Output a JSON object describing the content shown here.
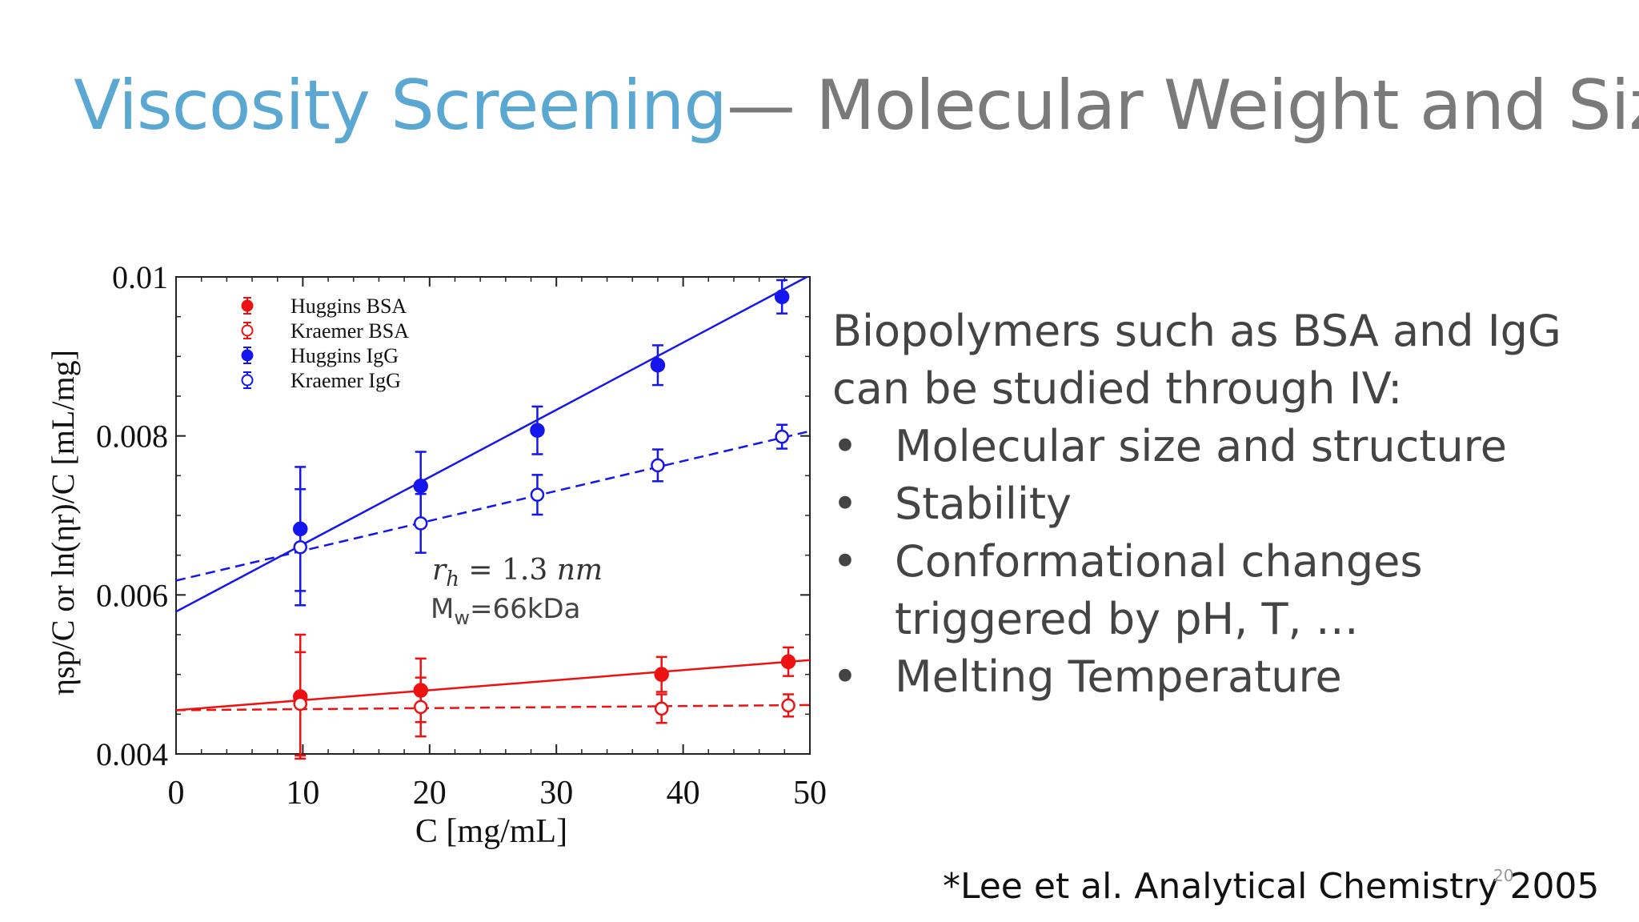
{
  "slide": {
    "title_main": "Viscosity Screening",
    "title_sub": "— Molecular Weight and Size",
    "bullets_intro": "Biopolymers such as BSA and IgG can be studied through IV:",
    "bullets": [
      "Molecular size and structure",
      "Stability",
      "Conformational changes triggered by pH, T, …",
      "Melting Temperature"
    ],
    "bullet_symbol": "•",
    "citation": "*Lee et al. Analytical Chemistry 2005",
    "page_number": "20"
  },
  "chart_data": {
    "type": "scatter",
    "xlabel": "C [mg/mL]",
    "ylabel": "ηsp/C or ln(ηr)/C  [mL/mg]",
    "xlim": [
      0,
      50
    ],
    "ylim": [
      0.004,
      0.01
    ],
    "xticks": [
      "0",
      "10",
      "20",
      "30",
      "40",
      "50"
    ],
    "yticks": [
      "0.004",
      "0.006",
      "0.008",
      "0.01"
    ],
    "legend_position": "top-left",
    "annotations": {
      "rh_symbol": "r",
      "rh_subscript": "h",
      "rh_value": " = 1.3 ",
      "rh_unit": "nm",
      "mw_label": "M",
      "mw_subscript": "w",
      "mw_value": "=66kDa"
    },
    "series": [
      {
        "name": "Huggins BSA",
        "color": "#ee1111",
        "marker": "filled",
        "fit_style": "solid",
        "points": [
          {
            "x": 9.8,
            "y": 0.00472,
            "err": 0.00078
          },
          {
            "x": 19.3,
            "y": 0.0048,
            "err": 0.0004
          },
          {
            "x": 38.3,
            "y": 0.005,
            "err": 0.00022
          },
          {
            "x": 48.3,
            "y": 0.00516,
            "err": 0.00018
          }
        ],
        "fit": {
          "intercept": 0.00455,
          "slope": 1.26e-05
        }
      },
      {
        "name": "Kraemer BSA",
        "color": "#ee1111",
        "marker": "open",
        "fit_style": "dashed",
        "points": [
          {
            "x": 9.8,
            "y": 0.00463,
            "err": 0.00065
          },
          {
            "x": 19.3,
            "y": 0.00459,
            "err": 0.00037
          },
          {
            "x": 38.3,
            "y": 0.00457,
            "err": 0.00018
          },
          {
            "x": 48.3,
            "y": 0.00461,
            "err": 0.00014
          }
        ],
        "fit": {
          "intercept": 0.00455,
          "slope": 1.3e-06
        }
      },
      {
        "name": "Huggins IgG",
        "color": "#1515ee",
        "marker": "filled",
        "fit_style": "solid",
        "points": [
          {
            "x": 9.8,
            "y": 0.00683,
            "err": 0.00078
          },
          {
            "x": 19.3,
            "y": 0.00737,
            "err": 0.00043
          },
          {
            "x": 28.5,
            "y": 0.00807,
            "err": 0.0003
          },
          {
            "x": 38.0,
            "y": 0.00889,
            "err": 0.00025
          },
          {
            "x": 47.8,
            "y": 0.00975,
            "err": 0.00021
          }
        ],
        "fit": {
          "intercept": 0.00579,
          "slope": 8.46e-05
        }
      },
      {
        "name": "Kraemer IgG",
        "color": "#1515ee",
        "marker": "open",
        "fit_style": "dashed",
        "points": [
          {
            "x": 9.8,
            "y": 0.0066,
            "err": 0.00073
          },
          {
            "x": 19.3,
            "y": 0.0069,
            "err": 0.00037
          },
          {
            "x": 28.5,
            "y": 0.00726,
            "err": 0.00025
          },
          {
            "x": 38.0,
            "y": 0.00763,
            "err": 0.0002
          },
          {
            "x": 47.8,
            "y": 0.00799,
            "err": 0.00015
          }
        ],
        "fit": {
          "intercept": 0.00618,
          "slope": 3.76e-05
        }
      }
    ]
  }
}
